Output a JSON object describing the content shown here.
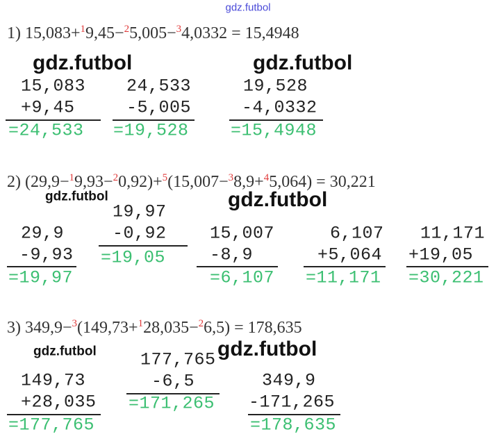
{
  "header": {
    "watermark": "gdz.futbol"
  },
  "problems": [
    {
      "expression": [
        {
          "text": "1) 15,083+"
        },
        {
          "step": "1",
          "text": "9,45−"
        },
        {
          "step": "2",
          "text": "5,005−"
        },
        {
          "step": "3",
          "text": "4,0332 = 15,4948"
        }
      ],
      "columns": [
        {
          "operands": [
            "15,083",
            "+9,45"
          ],
          "result": "=24,533"
        },
        {
          "operands": [
            "24,533",
            "-5,005"
          ],
          "result": "=19,528"
        },
        {
          "operands": [
            "19,528",
            "-4,0332"
          ],
          "result": "=15,4948"
        }
      ],
      "watermarks": [
        "gdz.futbol",
        "gdz.futbol"
      ]
    },
    {
      "expression": [
        {
          "text": "2) (29,9−"
        },
        {
          "step": "1",
          "text": "9,93−"
        },
        {
          "step": "2",
          "text": "0,92)+"
        },
        {
          "step": "5",
          "text": "(15,007−"
        },
        {
          "step": "3",
          "text": "8,9+"
        },
        {
          "step": "4",
          "text": "5,064) = 30,221"
        }
      ],
      "columns": [
        {
          "operands": [
            "29,9",
            "-9,93"
          ],
          "result": "=19,97"
        },
        {
          "operands": [
            "19,97",
            "-0,92"
          ],
          "result": "=19,05"
        },
        {
          "operands": [
            "15,007",
            "-8,9"
          ],
          "result": "=6,107"
        },
        {
          "operands": [
            "6,107",
            "+5,064"
          ],
          "result": "=11,171"
        },
        {
          "operands": [
            "11,171",
            "+19,05"
          ],
          "result": "=30,221"
        }
      ],
      "watermarks": [
        "gdz.futbol",
        "gdz.futbol"
      ]
    },
    {
      "expression": [
        {
          "text": "3) 349,9−"
        },
        {
          "step": "3",
          "text": "(149,73+"
        },
        {
          "step": "1",
          "text": "28,035−"
        },
        {
          "step": "2",
          "text": "6,5) = 178,635"
        }
      ],
      "columns": [
        {
          "operands": [
            "149,73",
            "+28,035"
          ],
          "result": "=177,765"
        },
        {
          "operands": [
            "177,765",
            "-6,5"
          ],
          "result": "=171,265"
        },
        {
          "operands": [
            "349,9",
            "-171,265"
          ],
          "result": "=178,635"
        }
      ],
      "watermarks": [
        "gdz.futbol",
        "gdz.futbol"
      ]
    }
  ]
}
